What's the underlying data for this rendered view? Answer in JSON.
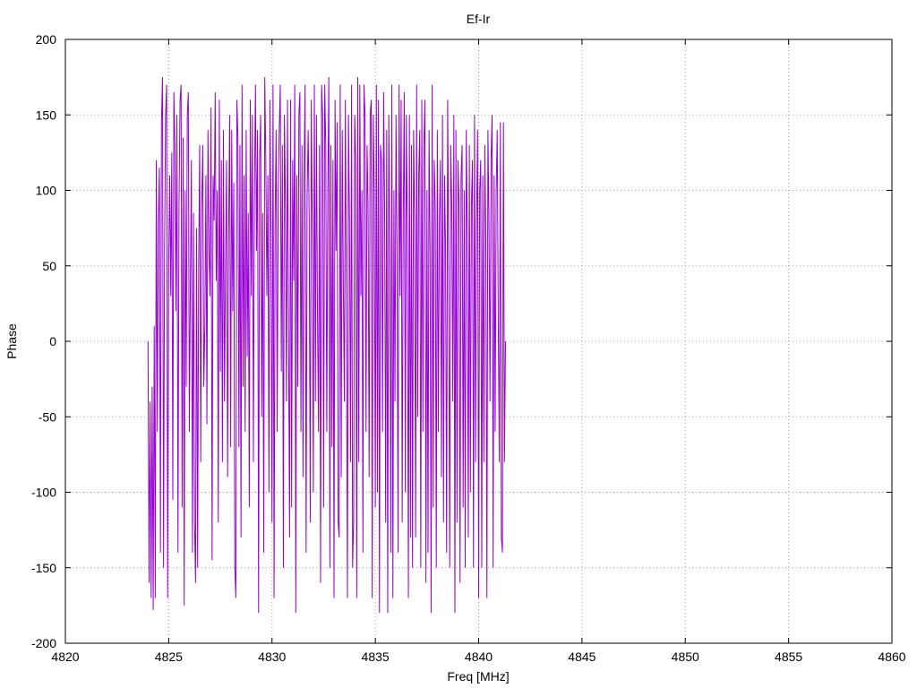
{
  "chart_data": {
    "type": "line",
    "title": "Ef-Ir",
    "xlabel": "Freq [MHz]",
    "ylabel": "Phase",
    "xlim": [
      4820,
      4860
    ],
    "ylim": [
      -200,
      200
    ],
    "x_ticks": [
      4820,
      4825,
      4830,
      4835,
      4840,
      4845,
      4850,
      4855,
      4860
    ],
    "y_ticks": [
      -200,
      -150,
      -100,
      -50,
      0,
      50,
      100,
      150,
      200
    ],
    "grid": true,
    "legend": "none",
    "series": [
      {
        "color": "#9400d3",
        "x_start": 4824.0,
        "x_step": 0.05,
        "values": [
          0,
          -160,
          -40,
          -170,
          -30,
          -178,
          10,
          -170,
          120,
          -60,
          80,
          115,
          -140,
          145,
          175,
          -150,
          60,
          150,
          170,
          -170,
          50,
          110,
          30,
          125,
          -105,
          165,
          130,
          20,
          150,
          -140,
          90,
          160,
          170,
          -110,
          135,
          -175,
          100,
          -30,
          150,
          165,
          -60,
          40,
          120,
          -140,
          85,
          -120,
          -160,
          75,
          -150,
          50,
          130,
          -80,
          90,
          130,
          -30,
          10,
          110,
          -55,
          140,
          60,
          30,
          155,
          -145,
          110,
          80,
          165,
          40,
          100,
          -120,
          160,
          -20,
          120,
          -80,
          140,
          -40,
          50,
          120,
          -90,
          70,
          150,
          -70,
          140,
          20,
          105,
          -150,
          -170,
          160,
          135,
          -70,
          130,
          -130,
          170,
          -30,
          110,
          -60,
          140,
          -10,
          85,
          -110,
          160,
          30,
          150,
          -80,
          100,
          170,
          60,
          140,
          -180,
          120,
          150,
          -50,
          85,
          -140,
          175,
          120,
          30,
          110,
          -100,
          160,
          70,
          -120,
          170,
          -170,
          80,
          140,
          -60,
          100,
          140,
          170,
          -20,
          130,
          -150,
          150,
          90,
          -40,
          160,
          10,
          -130,
          160,
          -110,
          120,
          40,
          170,
          -180,
          110,
          -30,
          150,
          165,
          -60,
          130,
          -90,
          110,
          170,
          -140,
          95,
          140,
          80,
          -120,
          160,
          70,
          -100,
          170,
          -40,
          150,
          20,
          -60,
          130,
          -160,
          170,
          150,
          -110,
          170,
          130,
          -60,
          100,
          175,
          -150,
          130,
          -70,
          120,
          -170,
          160,
          60,
          145,
          -120,
          -130,
          170,
          -90,
          140,
          40,
          -40,
          160,
          20,
          -170,
          150,
          80,
          -80,
          170,
          -150,
          -120,
          150,
          120,
          -170,
          175,
          -80,
          170,
          30,
          100,
          -140,
          170,
          150,
          -60,
          130,
          90,
          -90,
          150,
          160,
          -170,
          150,
          100,
          -110,
          170,
          -100,
          160,
          -180,
          130,
          120,
          -60,
          165,
          90,
          -120,
          140,
          -180,
          150,
          60,
          -140,
          170,
          -170,
          100,
          -40,
          150,
          60,
          -140,
          170,
          30,
          160,
          -120,
          80,
          165,
          -100,
          150,
          70,
          -170,
          150,
          -130,
          130,
          -150,
          140,
          80,
          -130,
          170,
          -50,
          110,
          140,
          -150,
          160,
          -60,
          130,
          160,
          -160,
          100,
          -140,
          140,
          60,
          -180,
          170,
          -110,
          120,
          90,
          -150,
          140,
          -60,
          80,
          120,
          -90,
          150,
          -120,
          110,
          60,
          -140,
          160,
          50,
          -150,
          130,
          90,
          -40,
          150,
          -180,
          140,
          -120,
          120,
          90,
          -160,
          110,
          130,
          -110,
          100,
          -150,
          140,
          70,
          -130,
          130,
          -100,
          90,
          120,
          -150,
          150,
          -80,
          80,
          140,
          -170,
          100,
          120,
          -150,
          110,
          -80,
          130,
          60,
          -170,
          140,
          80,
          -40,
          120,
          150,
          -150,
          110,
          -60,
          100,
          140,
          10,
          -80,
          145,
          -130,
          -140,
          145,
          -80,
          0
        ]
      }
    ]
  }
}
